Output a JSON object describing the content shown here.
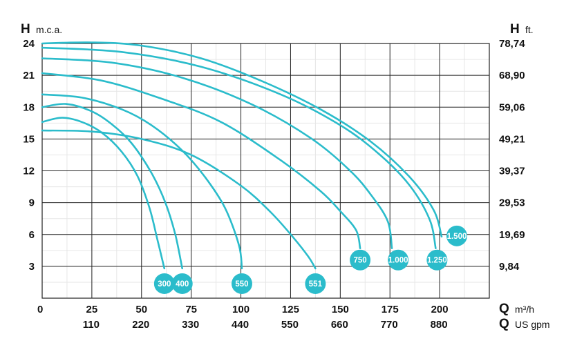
{
  "chart_data": {
    "type": "line",
    "y_left": {
      "symbol": "H",
      "unit": "m.c.a.",
      "ticks": [
        "24",
        "21",
        "18",
        "15",
        "12",
        "9",
        "6",
        "3"
      ],
      "range": [
        0,
        24
      ]
    },
    "y_right": {
      "symbol": "H",
      "unit": "ft.",
      "ticks": [
        "78,74",
        "68,90",
        "59,06",
        "49,21",
        "39,37",
        "29,53",
        "19,69",
        "9,84"
      ]
    },
    "x_primary": {
      "symbol": "Q",
      "unit": "m³/h",
      "ticks": [
        "0",
        "25",
        "50",
        "75",
        "100",
        "125",
        "150",
        "175",
        "200"
      ],
      "range": [
        0,
        225
      ]
    },
    "x_secondary": {
      "symbol": "Q",
      "unit": "US gpm",
      "ticks": [
        "110",
        "220",
        "330",
        "440",
        "550",
        "660",
        "770",
        "880"
      ]
    },
    "grid": true,
    "color": "#2bbccb",
    "series": [
      {
        "name": "300",
        "x": [
          0,
          10,
          20,
          30,
          40,
          48,
          54,
          58,
          61.5
        ],
        "y": [
          16.6,
          17.0,
          16.6,
          15.6,
          13.8,
          11.5,
          8.5,
          5.5,
          2.8
        ]
      },
      {
        "name": "400",
        "x": [
          0,
          12,
          25,
          35,
          45,
          55,
          62,
          67,
          70.5
        ],
        "y": [
          18.0,
          18.3,
          17.6,
          16.4,
          14.6,
          11.8,
          9.0,
          6.0,
          2.8
        ]
      },
      {
        "name": "550",
        "x": [
          0,
          20,
          40,
          55,
          70,
          82,
          92,
          99,
          100.5
        ],
        "y": [
          19.2,
          18.9,
          17.8,
          16.3,
          14.0,
          11.4,
          8.5,
          5.0,
          2.8
        ]
      },
      {
        "name": "551",
        "x": [
          0,
          25,
          50,
          75,
          100,
          115,
          126,
          134,
          137.5
        ],
        "y": [
          15.8,
          15.7,
          15.0,
          13.5,
          10.6,
          8.1,
          5.8,
          3.9,
          2.8
        ]
      },
      {
        "name": "750",
        "x": [
          0,
          30,
          60,
          90,
          120,
          140,
          150,
          158,
          160
        ],
        "y": [
          21.2,
          20.5,
          18.8,
          16.6,
          13.0,
          10.1,
          8.2,
          6.4,
          4.7
        ]
      },
      {
        "name": "1.000",
        "x": [
          0,
          35,
          70,
          105,
          135,
          155,
          166,
          174,
          176
        ],
        "y": [
          22.6,
          22.2,
          20.8,
          18.3,
          15.1,
          12.0,
          9.6,
          7.2,
          4.7
        ]
      },
      {
        "name": "1.250",
        "x": [
          0,
          40,
          80,
          120,
          150,
          170,
          185,
          195,
          198
        ],
        "y": [
          23.6,
          23.2,
          21.8,
          19.2,
          16.3,
          13.5,
          10.6,
          7.4,
          4.7
        ]
      },
      {
        "name": "1.500",
        "x": [
          0,
          25,
          50,
          80,
          110,
          140,
          165,
          185,
          197,
          201
        ],
        "y": [
          24.0,
          24.1,
          23.8,
          22.6,
          20.5,
          17.8,
          14.8,
          11.4,
          8.3,
          5.8
        ]
      }
    ]
  }
}
